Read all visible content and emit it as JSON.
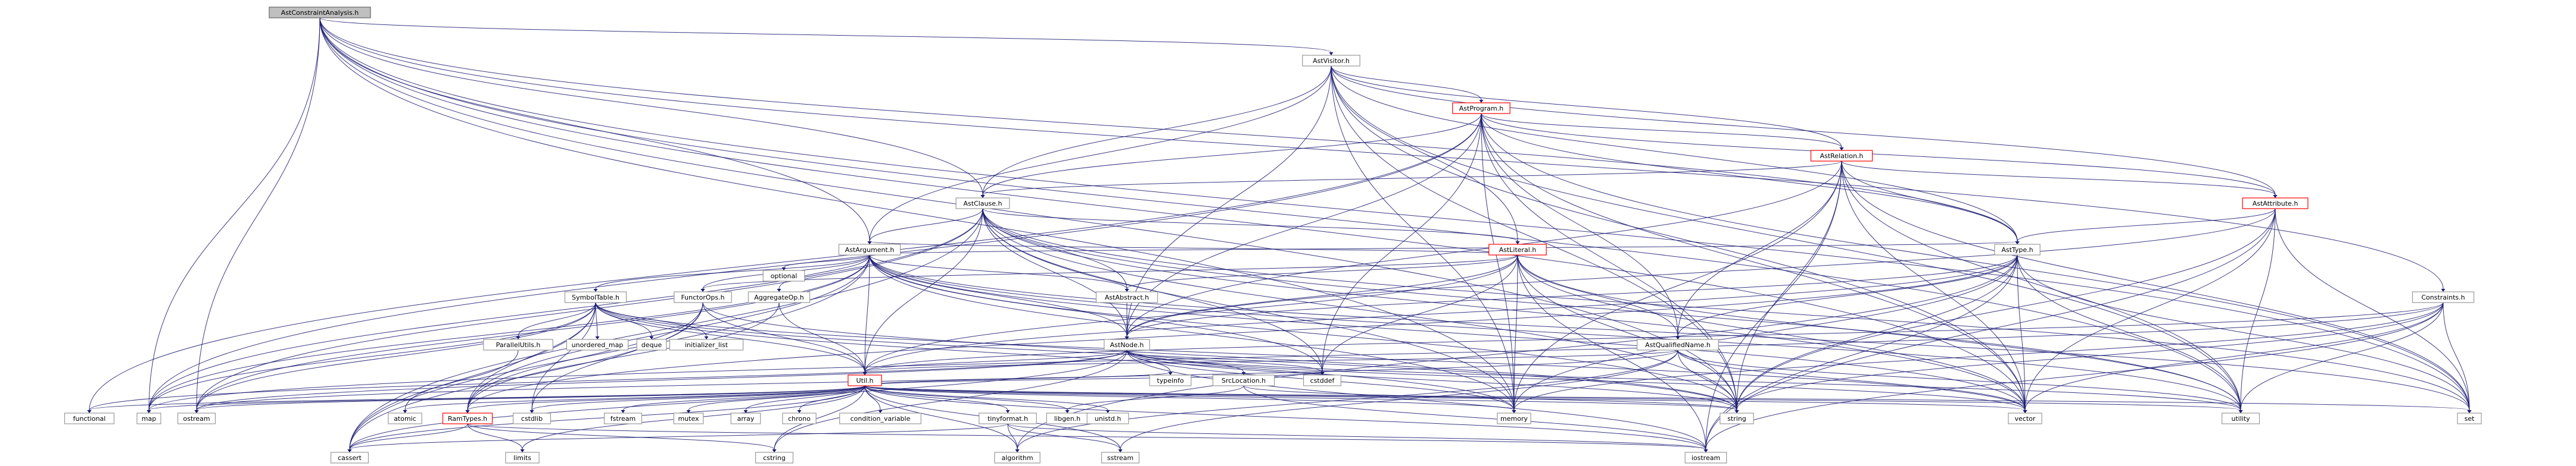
{
  "graph": {
    "type": "include-dependency-graph",
    "colors": {
      "edge": "#191970",
      "root_fill": "#bfbfbf",
      "node_border": "#999999",
      "highlight_border": "#ff0000"
    },
    "nodes": [
      {
        "id": "root",
        "label": "AstConstraintAnalysis.h",
        "style": "root"
      },
      {
        "id": "visitor",
        "label": "AstVisitor.h",
        "style": "normal"
      },
      {
        "id": "program",
        "label": "AstProgram.h",
        "style": "red"
      },
      {
        "id": "relation",
        "label": "AstRelation.h",
        "style": "red"
      },
      {
        "id": "clause",
        "label": "AstClause.h",
        "style": "normal"
      },
      {
        "id": "attribute",
        "label": "AstAttribute.h",
        "style": "red"
      },
      {
        "id": "argument",
        "label": "AstArgument.h",
        "style": "normal"
      },
      {
        "id": "literal",
        "label": "AstLiteral.h",
        "style": "red"
      },
      {
        "id": "type",
        "label": "AstType.h",
        "style": "normal"
      },
      {
        "id": "constraints",
        "label": "Constraints.h",
        "style": "normal"
      },
      {
        "id": "abstract",
        "label": "AstAbstract.h",
        "style": "normal"
      },
      {
        "id": "symboltable",
        "label": "SymbolTable.h",
        "style": "normal"
      },
      {
        "id": "functorops",
        "label": "FunctorOps.h",
        "style": "normal"
      },
      {
        "id": "aggregateop",
        "label": "AggregateOp.h",
        "style": "normal"
      },
      {
        "id": "astnode",
        "label": "AstNode.h",
        "style": "normal"
      },
      {
        "id": "qualifiedname",
        "label": "AstQualifiedName.h",
        "style": "normal"
      },
      {
        "id": "optional",
        "label": "optional",
        "style": "normal"
      },
      {
        "id": "parallelutils",
        "label": "ParallelUtils.h",
        "style": "normal"
      },
      {
        "id": "unordered_map",
        "label": "unordered_map",
        "style": "normal"
      },
      {
        "id": "deque",
        "label": "deque",
        "style": "normal"
      },
      {
        "id": "initializer_list",
        "label": "initializer_list",
        "style": "normal"
      },
      {
        "id": "util",
        "label": "Util.h",
        "style": "red"
      },
      {
        "id": "typeinfo",
        "label": "typeinfo",
        "style": "normal"
      },
      {
        "id": "srclocation",
        "label": "SrcLocation.h",
        "style": "normal"
      },
      {
        "id": "cstddef",
        "label": "cstddef",
        "style": "normal"
      },
      {
        "id": "functional",
        "label": "functional",
        "style": "normal"
      },
      {
        "id": "map",
        "label": "map",
        "style": "normal"
      },
      {
        "id": "ostream",
        "label": "ostream",
        "style": "normal"
      },
      {
        "id": "atomic",
        "label": "atomic",
        "style": "normal"
      },
      {
        "id": "ramtypes",
        "label": "RamTypes.h",
        "style": "red"
      },
      {
        "id": "cstdlib",
        "label": "cstdlib",
        "style": "normal"
      },
      {
        "id": "fstream",
        "label": "fstream",
        "style": "normal"
      },
      {
        "id": "mutex",
        "label": "mutex",
        "style": "normal"
      },
      {
        "id": "array",
        "label": "array",
        "style": "normal"
      },
      {
        "id": "chrono",
        "label": "chrono",
        "style": "normal"
      },
      {
        "id": "condition_variable",
        "label": "condition_variable",
        "style": "normal"
      },
      {
        "id": "tinyformat",
        "label": "tinyformat.h",
        "style": "normal"
      },
      {
        "id": "libgen",
        "label": "libgen.h",
        "style": "normal"
      },
      {
        "id": "unistd",
        "label": "unistd.h",
        "style": "normal"
      },
      {
        "id": "memory",
        "label": "memory",
        "style": "normal"
      },
      {
        "id": "string",
        "label": "string",
        "style": "normal"
      },
      {
        "id": "vector",
        "label": "vector",
        "style": "normal"
      },
      {
        "id": "utility",
        "label": "utility",
        "style": "normal"
      },
      {
        "id": "set",
        "label": "set",
        "style": "normal"
      },
      {
        "id": "cassert",
        "label": "cassert",
        "style": "normal"
      },
      {
        "id": "limits",
        "label": "limits",
        "style": "normal"
      },
      {
        "id": "cstring",
        "label": "cstring",
        "style": "normal"
      },
      {
        "id": "algorithm",
        "label": "algorithm",
        "style": "normal"
      },
      {
        "id": "sstream",
        "label": "sstream",
        "style": "normal"
      },
      {
        "id": "iostream",
        "label": "iostream",
        "style": "normal"
      }
    ],
    "edges": [
      [
        "root",
        "visitor"
      ],
      [
        "root",
        "clause"
      ],
      [
        "root",
        "argument"
      ],
      [
        "root",
        "constraints"
      ],
      [
        "root",
        "map"
      ],
      [
        "root",
        "ostream"
      ],
      [
        "root",
        "string"
      ],
      [
        "root",
        "memory"
      ],
      [
        "root",
        "set"
      ],
      [
        "root",
        "utility"
      ],
      [
        "root",
        "vector"
      ],
      [
        "root",
        "type"
      ],
      [
        "visitor",
        "program"
      ],
      [
        "visitor",
        "relation"
      ],
      [
        "visitor",
        "clause"
      ],
      [
        "visitor",
        "attribute"
      ],
      [
        "visitor",
        "argument"
      ],
      [
        "visitor",
        "literal"
      ],
      [
        "visitor",
        "type"
      ],
      [
        "visitor",
        "astnode"
      ],
      [
        "visitor",
        "memory"
      ],
      [
        "visitor",
        "vector"
      ],
      [
        "visitor",
        "utility"
      ],
      [
        "visitor",
        "string"
      ],
      [
        "program",
        "relation"
      ],
      [
        "program",
        "clause"
      ],
      [
        "program",
        "type"
      ],
      [
        "program",
        "qualifiedname"
      ],
      [
        "program",
        "astnode"
      ],
      [
        "program",
        "map"
      ],
      [
        "program",
        "memory"
      ],
      [
        "program",
        "string"
      ],
      [
        "program",
        "vector"
      ],
      [
        "program",
        "set"
      ],
      [
        "program",
        "cstddef"
      ],
      [
        "program",
        "functional"
      ],
      [
        "program",
        "attribute"
      ],
      [
        "relation",
        "clause"
      ],
      [
        "relation",
        "attribute"
      ],
      [
        "relation",
        "type"
      ],
      [
        "relation",
        "qualifiedname"
      ],
      [
        "relation",
        "astnode"
      ],
      [
        "relation",
        "memory"
      ],
      [
        "relation",
        "string"
      ],
      [
        "relation",
        "vector"
      ],
      [
        "relation",
        "set"
      ],
      [
        "relation",
        "iostream"
      ],
      [
        "relation",
        "utility"
      ],
      [
        "clause",
        "argument"
      ],
      [
        "clause",
        "literal"
      ],
      [
        "clause",
        "abstract"
      ],
      [
        "clause",
        "astnode"
      ],
      [
        "clause",
        "util"
      ],
      [
        "clause",
        "memory"
      ],
      [
        "clause",
        "string"
      ],
      [
        "clause",
        "vector"
      ],
      [
        "clause",
        "utility"
      ],
      [
        "clause",
        "ostream"
      ],
      [
        "clause",
        "map"
      ],
      [
        "clause",
        "cassert"
      ],
      [
        "clause",
        "cstddef"
      ],
      [
        "clause",
        "set"
      ],
      [
        "attribute",
        "type"
      ],
      [
        "attribute",
        "astnode"
      ],
      [
        "attribute",
        "string"
      ],
      [
        "attribute",
        "utility"
      ],
      [
        "attribute",
        "vector"
      ],
      [
        "attribute",
        "iostream"
      ],
      [
        "attribute",
        "set"
      ],
      [
        "argument",
        "abstract"
      ],
      [
        "argument",
        "astnode"
      ],
      [
        "argument",
        "util"
      ],
      [
        "argument",
        "symboltable"
      ],
      [
        "argument",
        "functorops"
      ],
      [
        "argument",
        "aggregateop"
      ],
      [
        "argument",
        "optional"
      ],
      [
        "argument",
        "type"
      ],
      [
        "argument",
        "ramtypes"
      ],
      [
        "argument",
        "memory"
      ],
      [
        "argument",
        "string"
      ],
      [
        "argument",
        "vector"
      ],
      [
        "argument",
        "utility"
      ],
      [
        "argument",
        "ostream"
      ],
      [
        "argument",
        "cassert"
      ],
      [
        "argument",
        "cstddef"
      ],
      [
        "argument",
        "map"
      ],
      [
        "argument",
        "set"
      ],
      [
        "literal",
        "argument"
      ],
      [
        "literal",
        "abstract"
      ],
      [
        "literal",
        "astnode"
      ],
      [
        "literal",
        "qualifiedname"
      ],
      [
        "literal",
        "util"
      ],
      [
        "literal",
        "memory"
      ],
      [
        "literal",
        "string"
      ],
      [
        "literal",
        "vector"
      ],
      [
        "literal",
        "utility"
      ],
      [
        "literal",
        "iostream"
      ],
      [
        "literal",
        "cstddef"
      ],
      [
        "literal",
        "functorops"
      ],
      [
        "type",
        "astnode"
      ],
      [
        "type",
        "qualifiedname"
      ],
      [
        "type",
        "util"
      ],
      [
        "type",
        "memory"
      ],
      [
        "type",
        "string"
      ],
      [
        "type",
        "vector"
      ],
      [
        "type",
        "utility"
      ],
      [
        "type",
        "set"
      ],
      [
        "type",
        "iostream"
      ],
      [
        "type",
        "ramtypes"
      ],
      [
        "type",
        "algorithm"
      ],
      [
        "constraints",
        "util"
      ],
      [
        "constraints",
        "memory"
      ],
      [
        "constraints",
        "string"
      ],
      [
        "constraints",
        "vector"
      ],
      [
        "constraints",
        "utility"
      ],
      [
        "constraints",
        "set"
      ],
      [
        "constraints",
        "iostream"
      ],
      [
        "constraints",
        "map"
      ],
      [
        "abstract",
        "astnode"
      ],
      [
        "symboltable",
        "parallelutils"
      ],
      [
        "symboltable",
        "unordered_map"
      ],
      [
        "symboltable",
        "deque"
      ],
      [
        "symboltable",
        "initializer_list"
      ],
      [
        "symboltable",
        "util"
      ],
      [
        "symboltable",
        "ramtypes"
      ],
      [
        "symboltable",
        "ostream"
      ],
      [
        "symboltable",
        "string"
      ],
      [
        "symboltable",
        "vector"
      ],
      [
        "symboltable",
        "cassert"
      ],
      [
        "symboltable",
        "cstdlib"
      ],
      [
        "symboltable",
        "memory"
      ],
      [
        "symboltable",
        "map"
      ],
      [
        "functorops",
        "ramtypes"
      ],
      [
        "functorops",
        "cassert"
      ],
      [
        "functorops",
        "cstdlib"
      ],
      [
        "functorops",
        "string"
      ],
      [
        "functorops",
        "util"
      ],
      [
        "aggregateop",
        "util"
      ],
      [
        "aggregateop",
        "ramtypes"
      ],
      [
        "astnode",
        "srclocation"
      ],
      [
        "astnode",
        "typeinfo"
      ],
      [
        "astnode",
        "util"
      ],
      [
        "astnode",
        "cstddef"
      ],
      [
        "astnode",
        "memory"
      ],
      [
        "astnode",
        "string"
      ],
      [
        "astnode",
        "vector"
      ],
      [
        "astnode",
        "utility"
      ],
      [
        "astnode",
        "iostream"
      ],
      [
        "astnode",
        "ostream"
      ],
      [
        "astnode",
        "functional"
      ],
      [
        "astnode",
        "cassert"
      ],
      [
        "astnode",
        "cstring"
      ],
      [
        "qualifiedname",
        "util"
      ],
      [
        "qualifiedname",
        "string"
      ],
      [
        "qualifiedname",
        "vector"
      ],
      [
        "qualifiedname",
        "algorithm"
      ],
      [
        "qualifiedname",
        "sstream"
      ],
      [
        "qualifiedname",
        "ostream"
      ],
      [
        "qualifiedname",
        "utility"
      ],
      [
        "parallelutils",
        "atomic"
      ],
      [
        "srclocation",
        "string"
      ],
      [
        "srclocation",
        "libgen"
      ],
      [
        "srclocation",
        "iostream"
      ],
      [
        "util",
        "map"
      ],
      [
        "util",
        "ostream"
      ],
      [
        "util",
        "functional"
      ],
      [
        "util",
        "atomic"
      ],
      [
        "util",
        "ramtypes"
      ],
      [
        "util",
        "cstdlib"
      ],
      [
        "util",
        "fstream"
      ],
      [
        "util",
        "mutex"
      ],
      [
        "util",
        "array"
      ],
      [
        "util",
        "chrono"
      ],
      [
        "util",
        "condition_variable"
      ],
      [
        "util",
        "tinyformat"
      ],
      [
        "util",
        "libgen"
      ],
      [
        "util",
        "unistd"
      ],
      [
        "util",
        "memory"
      ],
      [
        "util",
        "string"
      ],
      [
        "util",
        "vector"
      ],
      [
        "util",
        "utility"
      ],
      [
        "util",
        "set"
      ],
      [
        "util",
        "cassert"
      ],
      [
        "util",
        "limits"
      ],
      [
        "util",
        "cstring"
      ],
      [
        "util",
        "algorithm"
      ],
      [
        "util",
        "sstream"
      ],
      [
        "util",
        "iostream"
      ],
      [
        "util",
        "cstddef"
      ],
      [
        "util",
        "typeinfo"
      ],
      [
        "ramtypes",
        "cassert"
      ],
      [
        "ramtypes",
        "limits"
      ],
      [
        "ramtypes",
        "cstring"
      ],
      [
        "ramtypes",
        "iostream"
      ],
      [
        "tinyformat",
        "cassert"
      ],
      [
        "tinyformat",
        "algorithm"
      ],
      [
        "tinyformat",
        "sstream"
      ],
      [
        "tinyformat",
        "iostream"
      ]
    ]
  }
}
